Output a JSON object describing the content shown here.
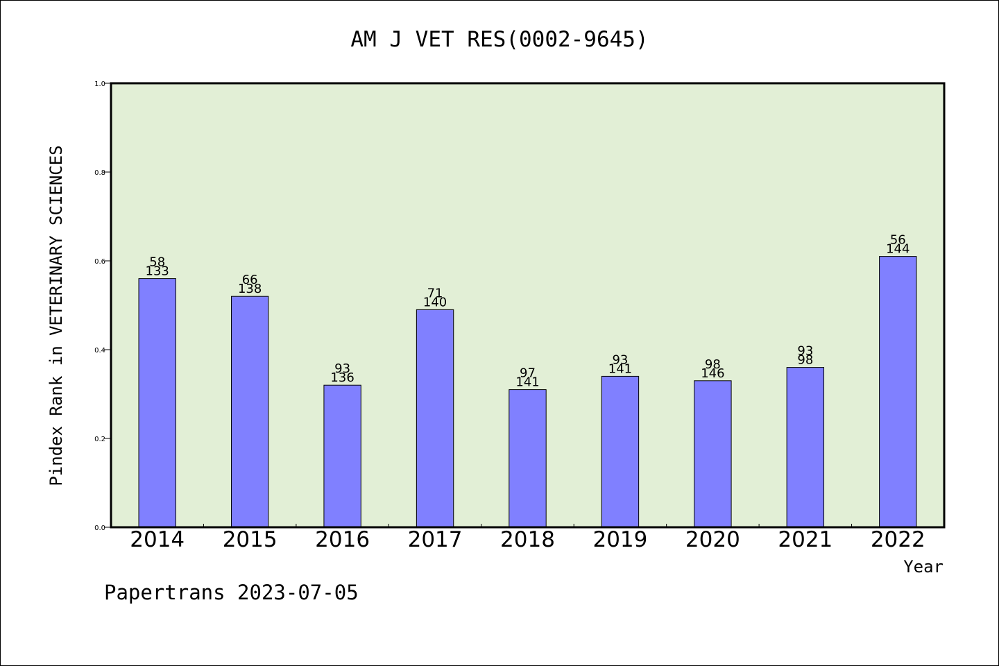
{
  "chart_data": {
    "type": "bar",
    "title": "AM J VET RES(0002-9645)",
    "xlabel": "Year",
    "ylabel": "Pindex Rank in VETERINARY SCIENCES",
    "categories": [
      "2014",
      "2015",
      "2016",
      "2017",
      "2018",
      "2019",
      "2020",
      "2021",
      "2022"
    ],
    "values": [
      0.56,
      0.52,
      0.32,
      0.49,
      0.31,
      0.34,
      0.33,
      0.36,
      0.61
    ],
    "labels_top": [
      "58",
      "66",
      "93",
      "71",
      "97",
      "93",
      "98",
      "93",
      "56"
    ],
    "labels_bottom": [
      "133",
      "138",
      "136",
      "140",
      "141",
      "141",
      "146",
      "98",
      "144"
    ],
    "ylim": [
      0,
      1.0
    ],
    "yticks": [
      "0.0",
      "0.2",
      "0.4",
      "0.6",
      "0.8",
      "1.0"
    ],
    "grid": false,
    "colors": {
      "plot_background": "#e2efd6",
      "bar": "#8080ff",
      "bar_edge": "#000000"
    }
  },
  "footer": {
    "text": "Papertrans 2023-07-05"
  }
}
